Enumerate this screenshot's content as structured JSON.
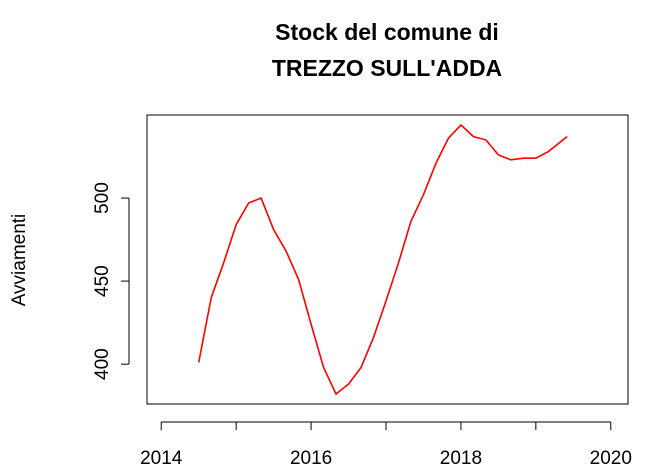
{
  "chart_data": {
    "type": "line",
    "title": [
      "Stock del comune di",
      "TREZZO SULL'ADDA"
    ],
    "y_label": "Avviamenti",
    "x": [
      2014.5,
      2014.667,
      2014.833,
      2015,
      2015.167,
      2015.333,
      2015.5,
      2015.667,
      2015.833,
      2016,
      2016.167,
      2016.333,
      2016.5,
      2016.667,
      2016.833,
      2017,
      2017.167,
      2017.333,
      2017.5,
      2017.667,
      2017.833,
      2018,
      2018.167,
      2018.333,
      2018.5,
      2018.667,
      2018.833,
      2019,
      2019.167,
      2019.333,
      2019.417
    ],
    "series": [
      {
        "color": "#ff0000",
        "values": [
          401,
          440,
          461,
          484,
          497,
          500,
          481,
          468,
          451,
          424,
          398,
          382,
          388,
          398,
          416,
          438,
          461,
          486,
          502,
          521,
          536,
          544,
          537,
          535,
          526,
          523,
          524,
          524,
          528,
          534,
          537
        ]
      }
    ],
    "xlim": [
      2013.81,
      2020.23
    ],
    "xticks": [
      2014,
      2016,
      2018,
      2020
    ],
    "xminor_ticks": [
      2015,
      2017,
      2019
    ],
    "ylim": [
      376,
      550
    ],
    "yticks": [
      400,
      450,
      500
    ]
  }
}
